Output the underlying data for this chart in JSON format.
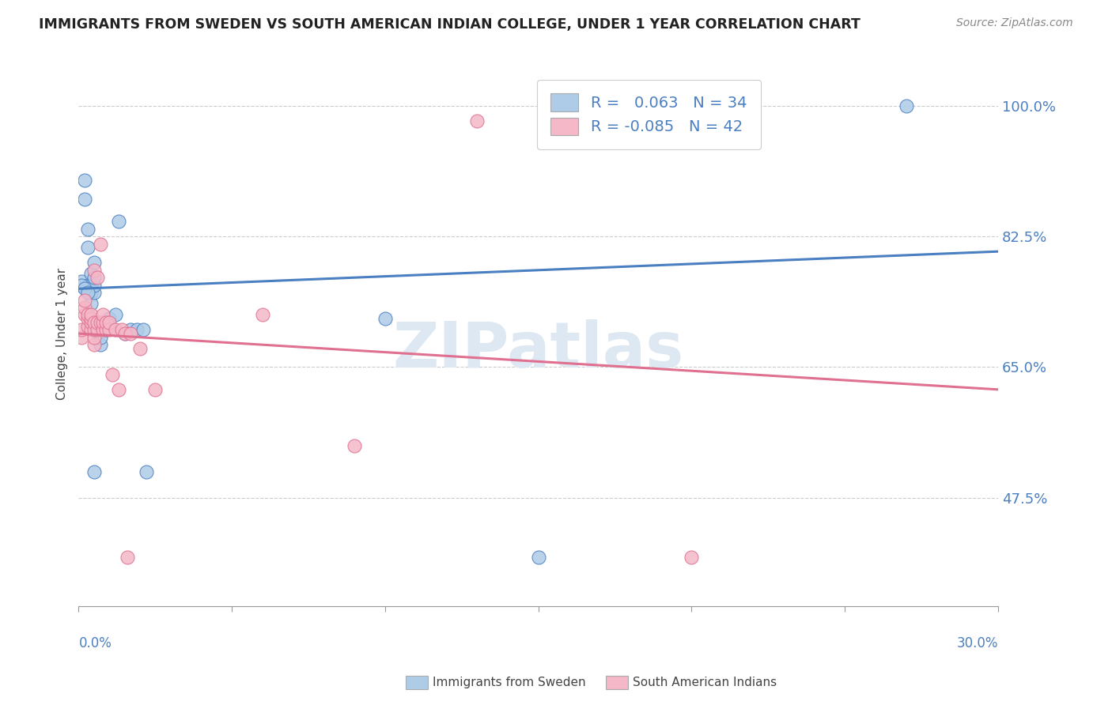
{
  "title": "IMMIGRANTS FROM SWEDEN VS SOUTH AMERICAN INDIAN COLLEGE, UNDER 1 YEAR CORRELATION CHART",
  "source": "Source: ZipAtlas.com",
  "ylabel": "College, Under 1 year",
  "ytick_labels": [
    "47.5%",
    "65.0%",
    "82.5%",
    "100.0%"
  ],
  "ytick_values": [
    0.475,
    0.65,
    0.825,
    1.0
  ],
  "xmin": 0.0,
  "xmax": 0.3,
  "ymin": 0.33,
  "ymax": 1.06,
  "blue_R": 0.063,
  "blue_N": 34,
  "pink_R": -0.085,
  "pink_N": 42,
  "blue_color": "#aecce8",
  "pink_color": "#f4b8c8",
  "blue_line_color": "#4a7fc1",
  "pink_line_color": "#e07090",
  "label_blue": "Immigrants from Sweden",
  "label_pink": "South American Indians",
  "watermark": "ZIPatlas",
  "blue_trend_x0": 0.0,
  "blue_trend_y0": 0.755,
  "blue_trend_x1": 0.3,
  "blue_trend_y1": 0.805,
  "pink_trend_x0": 0.0,
  "pink_trend_y0": 0.695,
  "pink_trend_x1": 0.3,
  "pink_trend_y1": 0.62,
  "blue_x": [
    0.001,
    0.002,
    0.002,
    0.003,
    0.003,
    0.003,
    0.004,
    0.004,
    0.004,
    0.004,
    0.005,
    0.005,
    0.005,
    0.005,
    0.006,
    0.006,
    0.007,
    0.007,
    0.009,
    0.01,
    0.012,
    0.013,
    0.015,
    0.017,
    0.019,
    0.021,
    0.022,
    0.1,
    0.15,
    0.27,
    0.001,
    0.002,
    0.003,
    0.005
  ],
  "blue_y": [
    0.765,
    0.875,
    0.9,
    0.81,
    0.835,
    0.76,
    0.76,
    0.775,
    0.75,
    0.735,
    0.75,
    0.76,
    0.77,
    0.79,
    0.7,
    0.71,
    0.68,
    0.69,
    0.7,
    0.715,
    0.72,
    0.845,
    0.695,
    0.7,
    0.7,
    0.7,
    0.51,
    0.715,
    0.395,
    1.0,
    0.76,
    0.755,
    0.75,
    0.51
  ],
  "pink_x": [
    0.001,
    0.001,
    0.002,
    0.002,
    0.002,
    0.003,
    0.003,
    0.003,
    0.004,
    0.004,
    0.004,
    0.004,
    0.005,
    0.005,
    0.005,
    0.005,
    0.005,
    0.006,
    0.006,
    0.006,
    0.007,
    0.007,
    0.008,
    0.008,
    0.008,
    0.009,
    0.009,
    0.01,
    0.01,
    0.011,
    0.012,
    0.013,
    0.014,
    0.015,
    0.016,
    0.017,
    0.02,
    0.025,
    0.06,
    0.09,
    0.13,
    0.2
  ],
  "pink_y": [
    0.69,
    0.7,
    0.72,
    0.73,
    0.74,
    0.705,
    0.715,
    0.72,
    0.7,
    0.71,
    0.715,
    0.72,
    0.68,
    0.69,
    0.7,
    0.71,
    0.78,
    0.7,
    0.71,
    0.77,
    0.71,
    0.815,
    0.7,
    0.71,
    0.72,
    0.7,
    0.71,
    0.7,
    0.71,
    0.64,
    0.7,
    0.62,
    0.7,
    0.695,
    0.395,
    0.695,
    0.675,
    0.62,
    0.72,
    0.545,
    0.98,
    0.395
  ]
}
